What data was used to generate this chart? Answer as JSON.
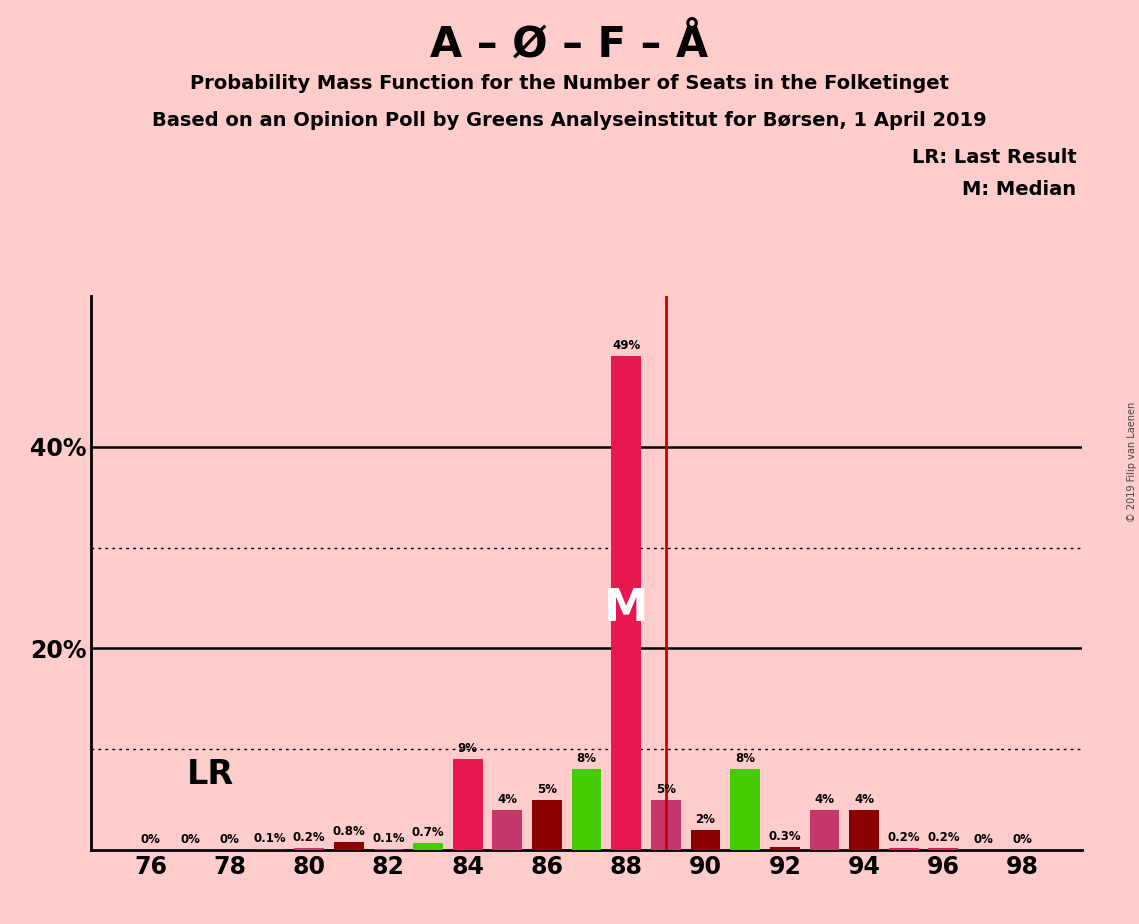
{
  "title_main": "A – Ø – F – Å",
  "title_line1": "Probability Mass Function for the Number of Seats in the Folketinget",
  "title_line2": "Based on an Opinion Poll by Greens Analyseinstitut for Børsen, 1 April 2019",
  "background_color": "#FFCCCC",
  "plot_bg_color": "#FFCCCC",
  "seat_data": [
    [
      76,
      0.0,
      "#E8174F",
      "0%"
    ],
    [
      77,
      0.0,
      "#E8174F",
      "0%"
    ],
    [
      78,
      0.0,
      "#E8174F",
      "0%"
    ],
    [
      79,
      0.1,
      "#8B0000",
      "0.1%"
    ],
    [
      80,
      0.2,
      "#C5366A",
      "0.2%"
    ],
    [
      81,
      0.8,
      "#8B0000",
      "0.8%"
    ],
    [
      82,
      0.1,
      "#C5366A",
      "0.1%"
    ],
    [
      83,
      0.7,
      "#44CC00",
      "0.7%"
    ],
    [
      84,
      9.0,
      "#E8174F",
      "9%"
    ],
    [
      85,
      4.0,
      "#C5366A",
      "4%"
    ],
    [
      86,
      5.0,
      "#8B0000",
      "5%"
    ],
    [
      87,
      8.0,
      "#44CC00",
      "8%"
    ],
    [
      88,
      49.0,
      "#E8174F",
      "49%"
    ],
    [
      89,
      5.0,
      "#C5366A",
      "5%"
    ],
    [
      90,
      2.0,
      "#8B0000",
      "2%"
    ],
    [
      91,
      8.0,
      "#44CC00",
      "8%"
    ],
    [
      92,
      0.3,
      "#8B0000",
      "0.3%"
    ],
    [
      93,
      4.0,
      "#C5366A",
      "4%"
    ],
    [
      94,
      4.0,
      "#8B0000",
      "4%"
    ],
    [
      95,
      0.2,
      "#E8174F",
      "0.2%"
    ],
    [
      96,
      0.2,
      "#E8174F",
      "0.2%"
    ],
    [
      97,
      0.0,
      "#E8174F",
      "0%"
    ],
    [
      98,
      0.0,
      "#E8174F",
      "0%"
    ]
  ],
  "lr_line_x": 89,
  "median_seat": 88,
  "legend_lr": "LR: Last Result",
  "legend_m": "M: Median",
  "solid_gridlines": [
    20,
    40
  ],
  "dotted_gridlines": [
    10,
    30
  ],
  "ylim": [
    0,
    55
  ],
  "xlim": [
    74.5,
    99.5
  ],
  "xticks": [
    76,
    78,
    80,
    82,
    84,
    86,
    88,
    90,
    92,
    94,
    96,
    98
  ],
  "ytick_positions": [
    20,
    40
  ],
  "ytick_labels": [
    "20%",
    "40%"
  ],
  "copyright_text": "© 2019 Filip van Laenen",
  "bar_width": 0.75
}
